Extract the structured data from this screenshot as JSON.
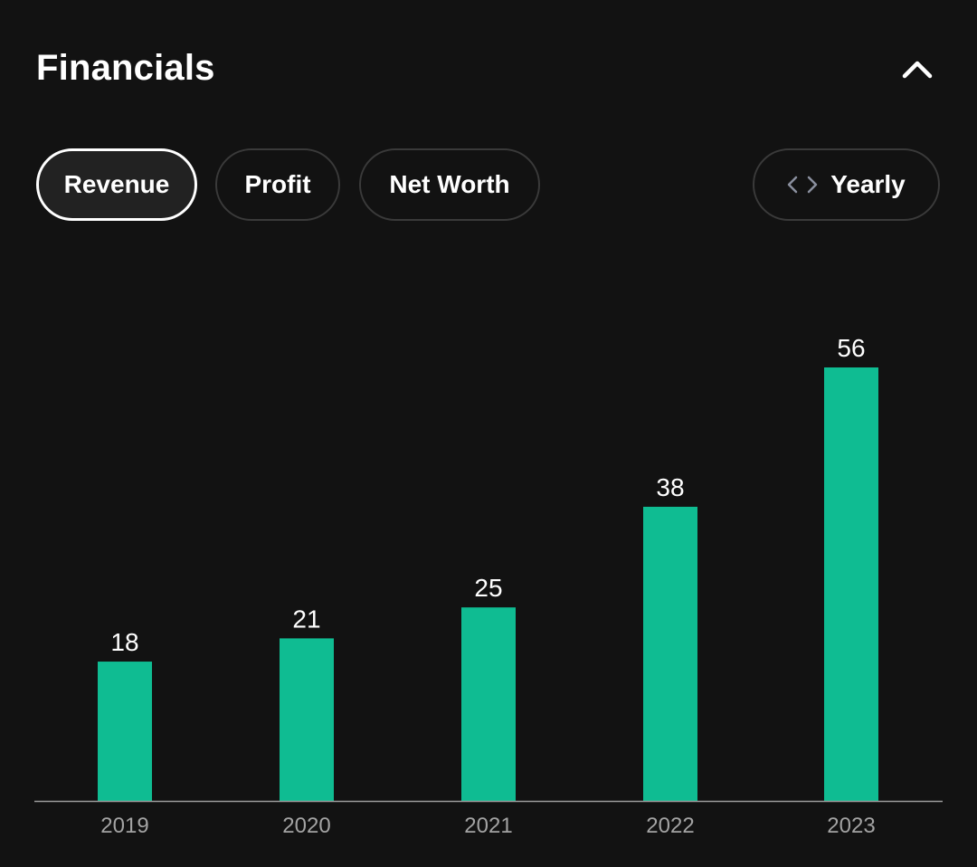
{
  "header": {
    "title": "Financials"
  },
  "filters": {
    "tabs": [
      {
        "label": "Revenue",
        "active": true
      },
      {
        "label": "Profit",
        "active": false
      },
      {
        "label": "Net Worth",
        "active": false
      }
    ],
    "period": {
      "label": "Yearly"
    }
  },
  "colors": {
    "background": "#121212",
    "bar": "#0fbc92",
    "axis": "#9a9a9a",
    "tick_label": "#a3a3a3",
    "value_label": "#ffffff"
  },
  "chart_data": {
    "type": "bar",
    "title": "",
    "xlabel": "",
    "ylabel": "",
    "categories": [
      "2019",
      "2020",
      "2021",
      "2022",
      "2023"
    ],
    "values": [
      18,
      21,
      25,
      38,
      56
    ],
    "value_labels": [
      "18",
      "21",
      "25",
      "38",
      "56"
    ],
    "ylim": [
      0,
      56
    ],
    "grid": false
  }
}
